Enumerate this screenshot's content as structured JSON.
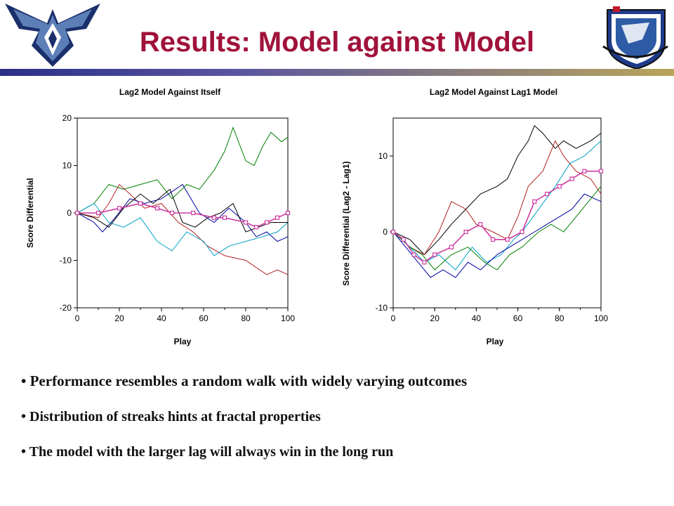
{
  "header": {
    "title": "Results: Model against Model"
  },
  "colors": {
    "title": "#a0123a",
    "rule_left": "#2a2f88",
    "rule_right": "#b9a45a",
    "avg_line": "#cc3aa0"
  },
  "icons": {
    "left_logo": "air-force-wings-logo",
    "right_logo": "afosr-shield-logo"
  },
  "chart_data": [
    {
      "type": "line",
      "title": "Lag2 Model Against Itself",
      "xlabel": "Play",
      "ylabel": "Score Differential",
      "xlim": [
        0,
        100
      ],
      "ylim": [
        -20,
        20
      ],
      "xticks": [
        "0",
        "20",
        "40",
        "60",
        "80",
        "100"
      ],
      "yticks": [
        "20",
        "10",
        "0",
        "-10",
        "-20"
      ],
      "grid": false,
      "series": [
        {
          "color": "#008000",
          "points": [
            [
              0,
              0
            ],
            [
              8,
              2
            ],
            [
              15,
              6
            ],
            [
              22,
              5
            ],
            [
              30,
              6
            ],
            [
              38,
              7
            ],
            [
              45,
              3
            ],
            [
              52,
              6
            ],
            [
              58,
              5
            ],
            [
              65,
              9
            ],
            [
              70,
              13
            ],
            [
              74,
              18
            ],
            [
              80,
              11
            ],
            [
              84,
              10
            ],
            [
              88,
              14
            ],
            [
              92,
              17
            ],
            [
              97,
              15
            ],
            [
              100,
              16
            ]
          ]
        },
        {
          "color": "#b22222",
          "points": [
            [
              0,
              0
            ],
            [
              10,
              -1
            ],
            [
              15,
              2
            ],
            [
              20,
              6
            ],
            [
              25,
              4
            ],
            [
              32,
              1
            ],
            [
              40,
              2
            ],
            [
              48,
              -2
            ],
            [
              55,
              -4
            ],
            [
              62,
              -7
            ],
            [
              70,
              -9
            ],
            [
              80,
              -10
            ],
            [
              90,
              -13
            ],
            [
              95,
              -12
            ],
            [
              100,
              -13
            ]
          ]
        },
        {
          "color": "#0000a0",
          "points": [
            [
              0,
              0
            ],
            [
              8,
              -2
            ],
            [
              12,
              -4
            ],
            [
              18,
              -1
            ],
            [
              25,
              3
            ],
            [
              32,
              2
            ],
            [
              40,
              3
            ],
            [
              50,
              6
            ],
            [
              58,
              0
            ],
            [
              65,
              -2
            ],
            [
              72,
              1
            ],
            [
              80,
              -2
            ],
            [
              85,
              -5
            ],
            [
              90,
              -4
            ],
            [
              95,
              -6
            ],
            [
              100,
              -5
            ]
          ]
        },
        {
          "color": "#00a0c8",
          "points": [
            [
              0,
              0
            ],
            [
              8,
              2
            ],
            [
              15,
              -2
            ],
            [
              22,
              -3
            ],
            [
              30,
              -1
            ],
            [
              38,
              -6
            ],
            [
              45,
              -8
            ],
            [
              52,
              -4
            ],
            [
              60,
              -6
            ],
            [
              65,
              -9
            ],
            [
              72,
              -7
            ],
            [
              80,
              -6
            ],
            [
              88,
              -5
            ],
            [
              95,
              -4
            ],
            [
              100,
              -2
            ]
          ]
        },
        {
          "color": "#000000",
          "points": [
            [
              0,
              0
            ],
            [
              8,
              -1
            ],
            [
              15,
              -3
            ],
            [
              22,
              1
            ],
            [
              30,
              4
            ],
            [
              36,
              2
            ],
            [
              44,
              5
            ],
            [
              50,
              -2
            ],
            [
              56,
              -3
            ],
            [
              62,
              -1
            ],
            [
              68,
              0
            ],
            [
              74,
              2
            ],
            [
              80,
              -4
            ],
            [
              86,
              -3
            ],
            [
              92,
              -2
            ],
            [
              100,
              -2
            ]
          ]
        },
        {
          "color": "#cc3aa0",
          "markers": true,
          "points": [
            [
              0,
              0
            ],
            [
              10,
              0
            ],
            [
              20,
              1
            ],
            [
              30,
              2
            ],
            [
              38,
              1
            ],
            [
              45,
              0
            ],
            [
              55,
              0
            ],
            [
              65,
              -1
            ],
            [
              70,
              -1
            ],
            [
              80,
              -2
            ],
            [
              85,
              -3
            ],
            [
              90,
              -2
            ],
            [
              95,
              -1
            ],
            [
              100,
              0
            ]
          ]
        }
      ]
    },
    {
      "type": "line",
      "title": "Lag2 Model Against Lag1 Model",
      "xlabel": "Play",
      "ylabel": "Score Differential (Lag2 - Lag1)",
      "xlim": [
        0,
        100
      ],
      "ylim": [
        -10,
        15
      ],
      "xticks": [
        "0",
        "20",
        "40",
        "60",
        "80",
        "100"
      ],
      "yticks": [
        "10",
        "0",
        "-10"
      ],
      "grid": false,
      "series": [
        {
          "color": "#000000",
          "points": [
            [
              0,
              0
            ],
            [
              8,
              -1
            ],
            [
              15,
              -3
            ],
            [
              22,
              -1
            ],
            [
              28,
              1
            ],
            [
              35,
              3
            ],
            [
              42,
              5
            ],
            [
              50,
              6
            ],
            [
              55,
              7
            ],
            [
              60,
              10
            ],
            [
              65,
              12
            ],
            [
              68,
              14
            ],
            [
              72,
              13
            ],
            [
              78,
              11
            ],
            [
              82,
              12
            ],
            [
              88,
              11
            ],
            [
              95,
              12
            ],
            [
              100,
              13
            ]
          ]
        },
        {
          "color": "#b22222",
          "points": [
            [
              0,
              0
            ],
            [
              8,
              -2
            ],
            [
              15,
              -3
            ],
            [
              22,
              0
            ],
            [
              28,
              4
            ],
            [
              35,
              3
            ],
            [
              40,
              1
            ],
            [
              48,
              0
            ],
            [
              55,
              -1
            ],
            [
              60,
              2
            ],
            [
              65,
              6
            ],
            [
              72,
              8
            ],
            [
              78,
              12
            ],
            [
              82,
              10
            ],
            [
              88,
              8
            ],
            [
              95,
              7
            ],
            [
              100,
              5
            ]
          ]
        },
        {
          "color": "#00a0c8",
          "points": [
            [
              0,
              0
            ],
            [
              8,
              -2
            ],
            [
              15,
              -4
            ],
            [
              22,
              -3
            ],
            [
              30,
              -5
            ],
            [
              38,
              -2
            ],
            [
              45,
              -4
            ],
            [
              52,
              -3
            ],
            [
              58,
              -1
            ],
            [
              62,
              0
            ],
            [
              70,
              3
            ],
            [
              78,
              6
            ],
            [
              85,
              9
            ],
            [
              92,
              10
            ],
            [
              100,
              12
            ]
          ]
        },
        {
          "color": "#0000a0",
          "points": [
            [
              0,
              0
            ],
            [
              6,
              -2
            ],
            [
              12,
              -4
            ],
            [
              18,
              -6
            ],
            [
              24,
              -5
            ],
            [
              30,
              -6
            ],
            [
              36,
              -4
            ],
            [
              42,
              -5
            ],
            [
              50,
              -3
            ],
            [
              56,
              -2
            ],
            [
              62,
              -1
            ],
            [
              68,
              0
            ],
            [
              74,
              1
            ],
            [
              80,
              2
            ],
            [
              86,
              3
            ],
            [
              92,
              5
            ],
            [
              100,
              4
            ]
          ]
        },
        {
          "color": "#008000",
          "points": [
            [
              0,
              0
            ],
            [
              8,
              -2
            ],
            [
              14,
              -3
            ],
            [
              20,
              -5
            ],
            [
              28,
              -3
            ],
            [
              36,
              -2
            ],
            [
              44,
              -4
            ],
            [
              50,
              -5
            ],
            [
              56,
              -3
            ],
            [
              62,
              -2
            ],
            [
              70,
              0
            ],
            [
              76,
              1
            ],
            [
              82,
              0
            ],
            [
              88,
              2
            ],
            [
              94,
              4
            ],
            [
              100,
              6
            ]
          ]
        },
        {
          "color": "#cc3aa0",
          "markers": true,
          "points": [
            [
              0,
              0
            ],
            [
              5,
              -1
            ],
            [
              10,
              -3
            ],
            [
              15,
              -4
            ],
            [
              20,
              -3
            ],
            [
              28,
              -2
            ],
            [
              35,
              0
            ],
            [
              42,
              1
            ],
            [
              48,
              -1
            ],
            [
              55,
              -1
            ],
            [
              62,
              0
            ],
            [
              68,
              4
            ],
            [
              74,
              5
            ],
            [
              80,
              6
            ],
            [
              86,
              7
            ],
            [
              92,
              8
            ],
            [
              100,
              8
            ]
          ]
        }
      ]
    }
  ],
  "bullets": [
    "Performance resembles a random walk with widely varying outcomes",
    "Distribution of streaks hints at fractal properties",
    "The model with the larger lag will always win in the long run"
  ]
}
